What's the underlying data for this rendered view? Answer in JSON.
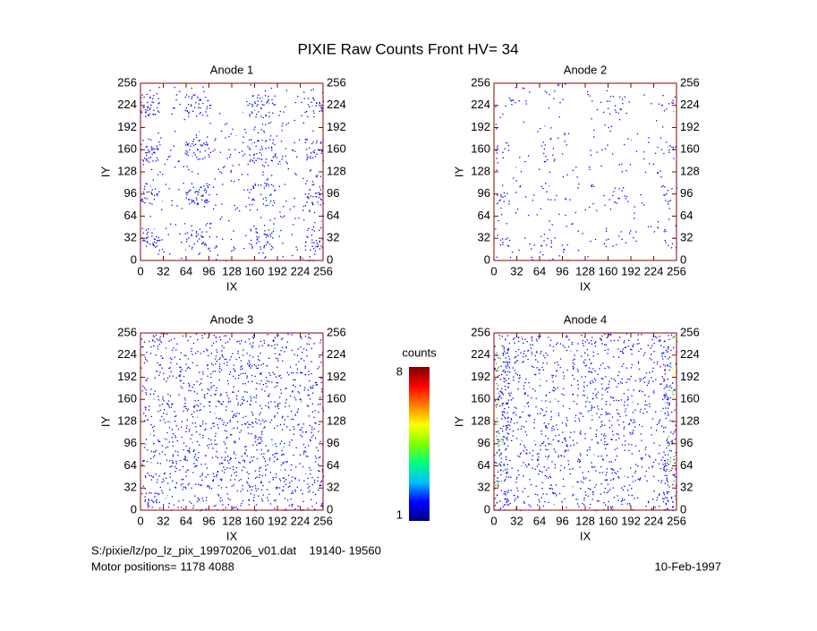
{
  "title": "PIXIE Raw Counts Front HV= 34",
  "chart_data": [
    {
      "type": "heatmap",
      "title": "Anode 1",
      "x_label": "IX",
      "y_label": "IY",
      "xlim": [
        0,
        256
      ],
      "ylim": [
        0,
        256
      ],
      "xticks": [
        0,
        32,
        64,
        96,
        128,
        160,
        192,
        224,
        256
      ],
      "yticks": [
        0,
        32,
        64,
        96,
        128,
        160,
        192,
        224,
        256
      ]
    },
    {
      "type": "heatmap",
      "title": "Anode 2",
      "x_label": "IX",
      "y_label": "IY",
      "xlim": [
        0,
        256
      ],
      "ylim": [
        0,
        256
      ],
      "xticks": [
        0,
        32,
        64,
        96,
        128,
        160,
        192,
        224,
        256
      ],
      "yticks": [
        0,
        32,
        64,
        96,
        128,
        160,
        192,
        224,
        256
      ]
    },
    {
      "type": "heatmap",
      "title": "Anode 3",
      "x_label": "IX",
      "y_label": "IY",
      "xlim": [
        0,
        256
      ],
      "ylim": [
        0,
        256
      ],
      "xticks": [
        0,
        32,
        64,
        96,
        128,
        160,
        192,
        224,
        256
      ],
      "yticks": [
        0,
        32,
        64,
        96,
        128,
        160,
        192,
        224,
        256
      ]
    },
    {
      "type": "heatmap",
      "title": "Anode 4",
      "x_label": "IX",
      "y_label": "IY",
      "xlim": [
        0,
        256
      ],
      "ylim": [
        0,
        256
      ],
      "xticks": [
        0,
        32,
        64,
        96,
        128,
        160,
        192,
        224,
        256
      ],
      "yticks": [
        0,
        32,
        64,
        96,
        128,
        160,
        192,
        224,
        256
      ]
    },
    {
      "type": "colorbar",
      "label": "counts",
      "lim": [
        1,
        8
      ],
      "ticks": [
        1,
        8
      ],
      "colors": [
        "#000080",
        "#0000ff",
        "#00c0ff",
        "#00ff80",
        "#80ff00",
        "#ffff00",
        "#ff8000",
        "#ff0000",
        "#800000"
      ]
    }
  ],
  "footer": {
    "file": "S:/pixie/lz/po_lz_pix_19970206_v01.dat    19140- 19560",
    "motor": "Motor positions= 1178 4088",
    "date": "10-Feb-1997"
  }
}
